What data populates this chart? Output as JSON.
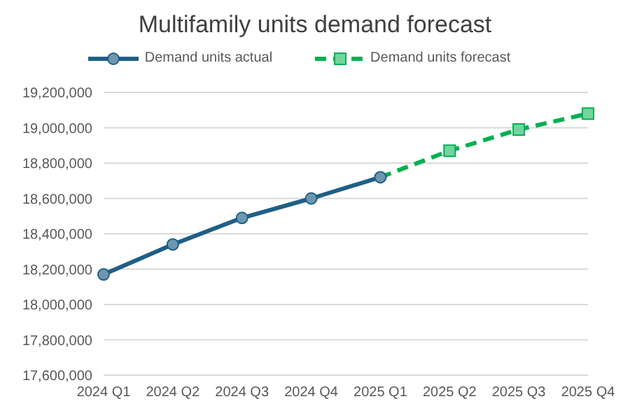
{
  "chart_data": {
    "type": "line",
    "title": "Multifamily units demand forecast",
    "categories": [
      "2024 Q1",
      "2024 Q2",
      "2024 Q3",
      "2024 Q4",
      "2025 Q1",
      "2025 Q2",
      "2025 Q3",
      "2025 Q4"
    ],
    "series": [
      {
        "name": "Demand units actual",
        "color": "#1f5f86",
        "marker": "circle",
        "line_style": "solid",
        "values": [
          18170000,
          18340000,
          18490000,
          18600000,
          18720000,
          null,
          null,
          null
        ]
      },
      {
        "name": "Demand units forecast",
        "color": "#00b050",
        "marker": "square",
        "line_style": "dashed",
        "values": [
          null,
          null,
          null,
          null,
          18720000,
          18870000,
          18990000,
          19080000
        ]
      }
    ],
    "ylim": [
      17600000,
      19200000
    ],
    "yticks": [
      {
        "value": 17600000,
        "label": "17,600,000"
      },
      {
        "value": 17800000,
        "label": "17,800,000"
      },
      {
        "value": 18000000,
        "label": "18,000,000"
      },
      {
        "value": 18200000,
        "label": "18,200,000"
      },
      {
        "value": 18400000,
        "label": "18,400,000"
      },
      {
        "value": 18600000,
        "label": "18,600,000"
      },
      {
        "value": 18800000,
        "label": "18,800,000"
      },
      {
        "value": 19000000,
        "label": "19,000,000"
      },
      {
        "value": 19200000,
        "label": "19,200,000"
      }
    ],
    "grid": "y",
    "legend": "top"
  }
}
